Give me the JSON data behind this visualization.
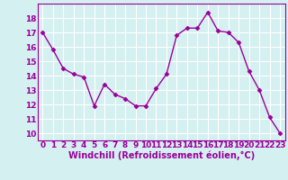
{
  "x": [
    0,
    1,
    2,
    3,
    4,
    5,
    6,
    7,
    8,
    9,
    10,
    11,
    12,
    13,
    14,
    15,
    16,
    17,
    18,
    19,
    20,
    21,
    22,
    23
  ],
  "y": [
    17.0,
    15.8,
    14.5,
    14.1,
    13.9,
    11.9,
    13.4,
    12.7,
    12.4,
    11.9,
    11.9,
    13.1,
    14.1,
    16.8,
    17.3,
    17.3,
    18.4,
    17.1,
    17.0,
    16.3,
    14.3,
    13.0,
    11.1,
    10.0
  ],
  "line_color": "#990099",
  "marker": "D",
  "marker_size": 2.5,
  "bg_color": "#d5f0f0",
  "grid_color": "#ffffff",
  "xlabel": "Windchill (Refroidissement éolien,°C)",
  "xlabel_fontsize": 7,
  "tick_fontsize": 6.5,
  "ylim": [
    9.5,
    19.0
  ],
  "xlim": [
    -0.5,
    23.5
  ],
  "yticks": [
    10,
    11,
    12,
    13,
    14,
    15,
    16,
    17,
    18
  ],
  "xticks": [
    0,
    1,
    2,
    3,
    4,
    5,
    6,
    7,
    8,
    9,
    10,
    11,
    12,
    13,
    14,
    15,
    16,
    17,
    18,
    19,
    20,
    21,
    22,
    23
  ],
  "line_width": 1.0
}
